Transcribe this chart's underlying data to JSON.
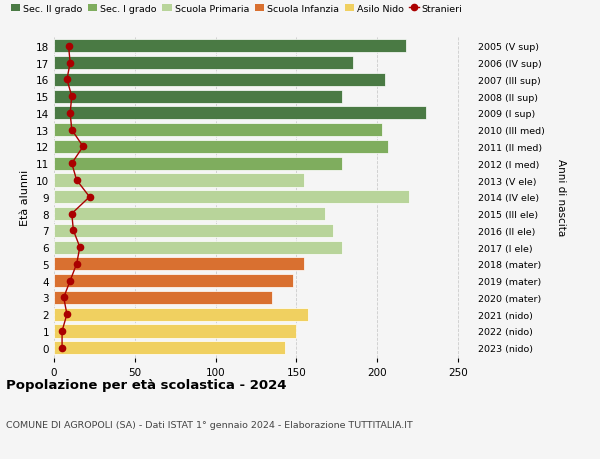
{
  "ages": [
    18,
    17,
    16,
    15,
    14,
    13,
    12,
    11,
    10,
    9,
    8,
    7,
    6,
    5,
    4,
    3,
    2,
    1,
    0
  ],
  "right_labels": [
    "2005 (V sup)",
    "2006 (IV sup)",
    "2007 (III sup)",
    "2008 (II sup)",
    "2009 (I sup)",
    "2010 (III med)",
    "2011 (II med)",
    "2012 (I med)",
    "2013 (V ele)",
    "2014 (IV ele)",
    "2015 (III ele)",
    "2016 (II ele)",
    "2017 (I ele)",
    "2018 (mater)",
    "2019 (mater)",
    "2020 (mater)",
    "2021 (nido)",
    "2022 (nido)",
    "2023 (nido)"
  ],
  "bar_values": [
    218,
    185,
    205,
    178,
    230,
    203,
    207,
    178,
    155,
    220,
    168,
    173,
    178,
    155,
    148,
    135,
    157,
    150,
    143
  ],
  "bar_colors": [
    "#4a7a44",
    "#4a7a44",
    "#4a7a44",
    "#4a7a44",
    "#4a7a44",
    "#7fad5e",
    "#7fad5e",
    "#7fad5e",
    "#b8d49a",
    "#b8d49a",
    "#b8d49a",
    "#b8d49a",
    "#b8d49a",
    "#d97030",
    "#d97030",
    "#d97030",
    "#f0d060",
    "#f0d060",
    "#f0d060"
  ],
  "stranieri_values": [
    9,
    10,
    8,
    11,
    10,
    11,
    18,
    11,
    14,
    22,
    11,
    12,
    16,
    14,
    10,
    6,
    8,
    5,
    5
  ],
  "title": "Popolazione per età scolastica - 2024",
  "subtitle": "COMUNE DI AGROPOLI (SA) - Dati ISTAT 1° gennaio 2024 - Elaborazione TUTTITALIA.IT",
  "ylabel": "Età alunni",
  "right_ylabel": "Anni di nascita",
  "xlim": [
    0,
    260
  ],
  "xticks": [
    0,
    50,
    100,
    150,
    200,
    250
  ],
  "legend_items": [
    {
      "label": "Sec. II grado",
      "color": "#4a7a44"
    },
    {
      "label": "Sec. I grado",
      "color": "#7fad5e"
    },
    {
      "label": "Scuola Primaria",
      "color": "#b8d49a"
    },
    {
      "label": "Scuola Infanzia",
      "color": "#d97030"
    },
    {
      "label": "Asilo Nido",
      "color": "#f0d060"
    },
    {
      "label": "Stranieri",
      "color": "#aa0000"
    }
  ],
  "bg_color": "#f5f5f5",
  "bar_height": 0.78,
  "grid_color": "#cccccc"
}
